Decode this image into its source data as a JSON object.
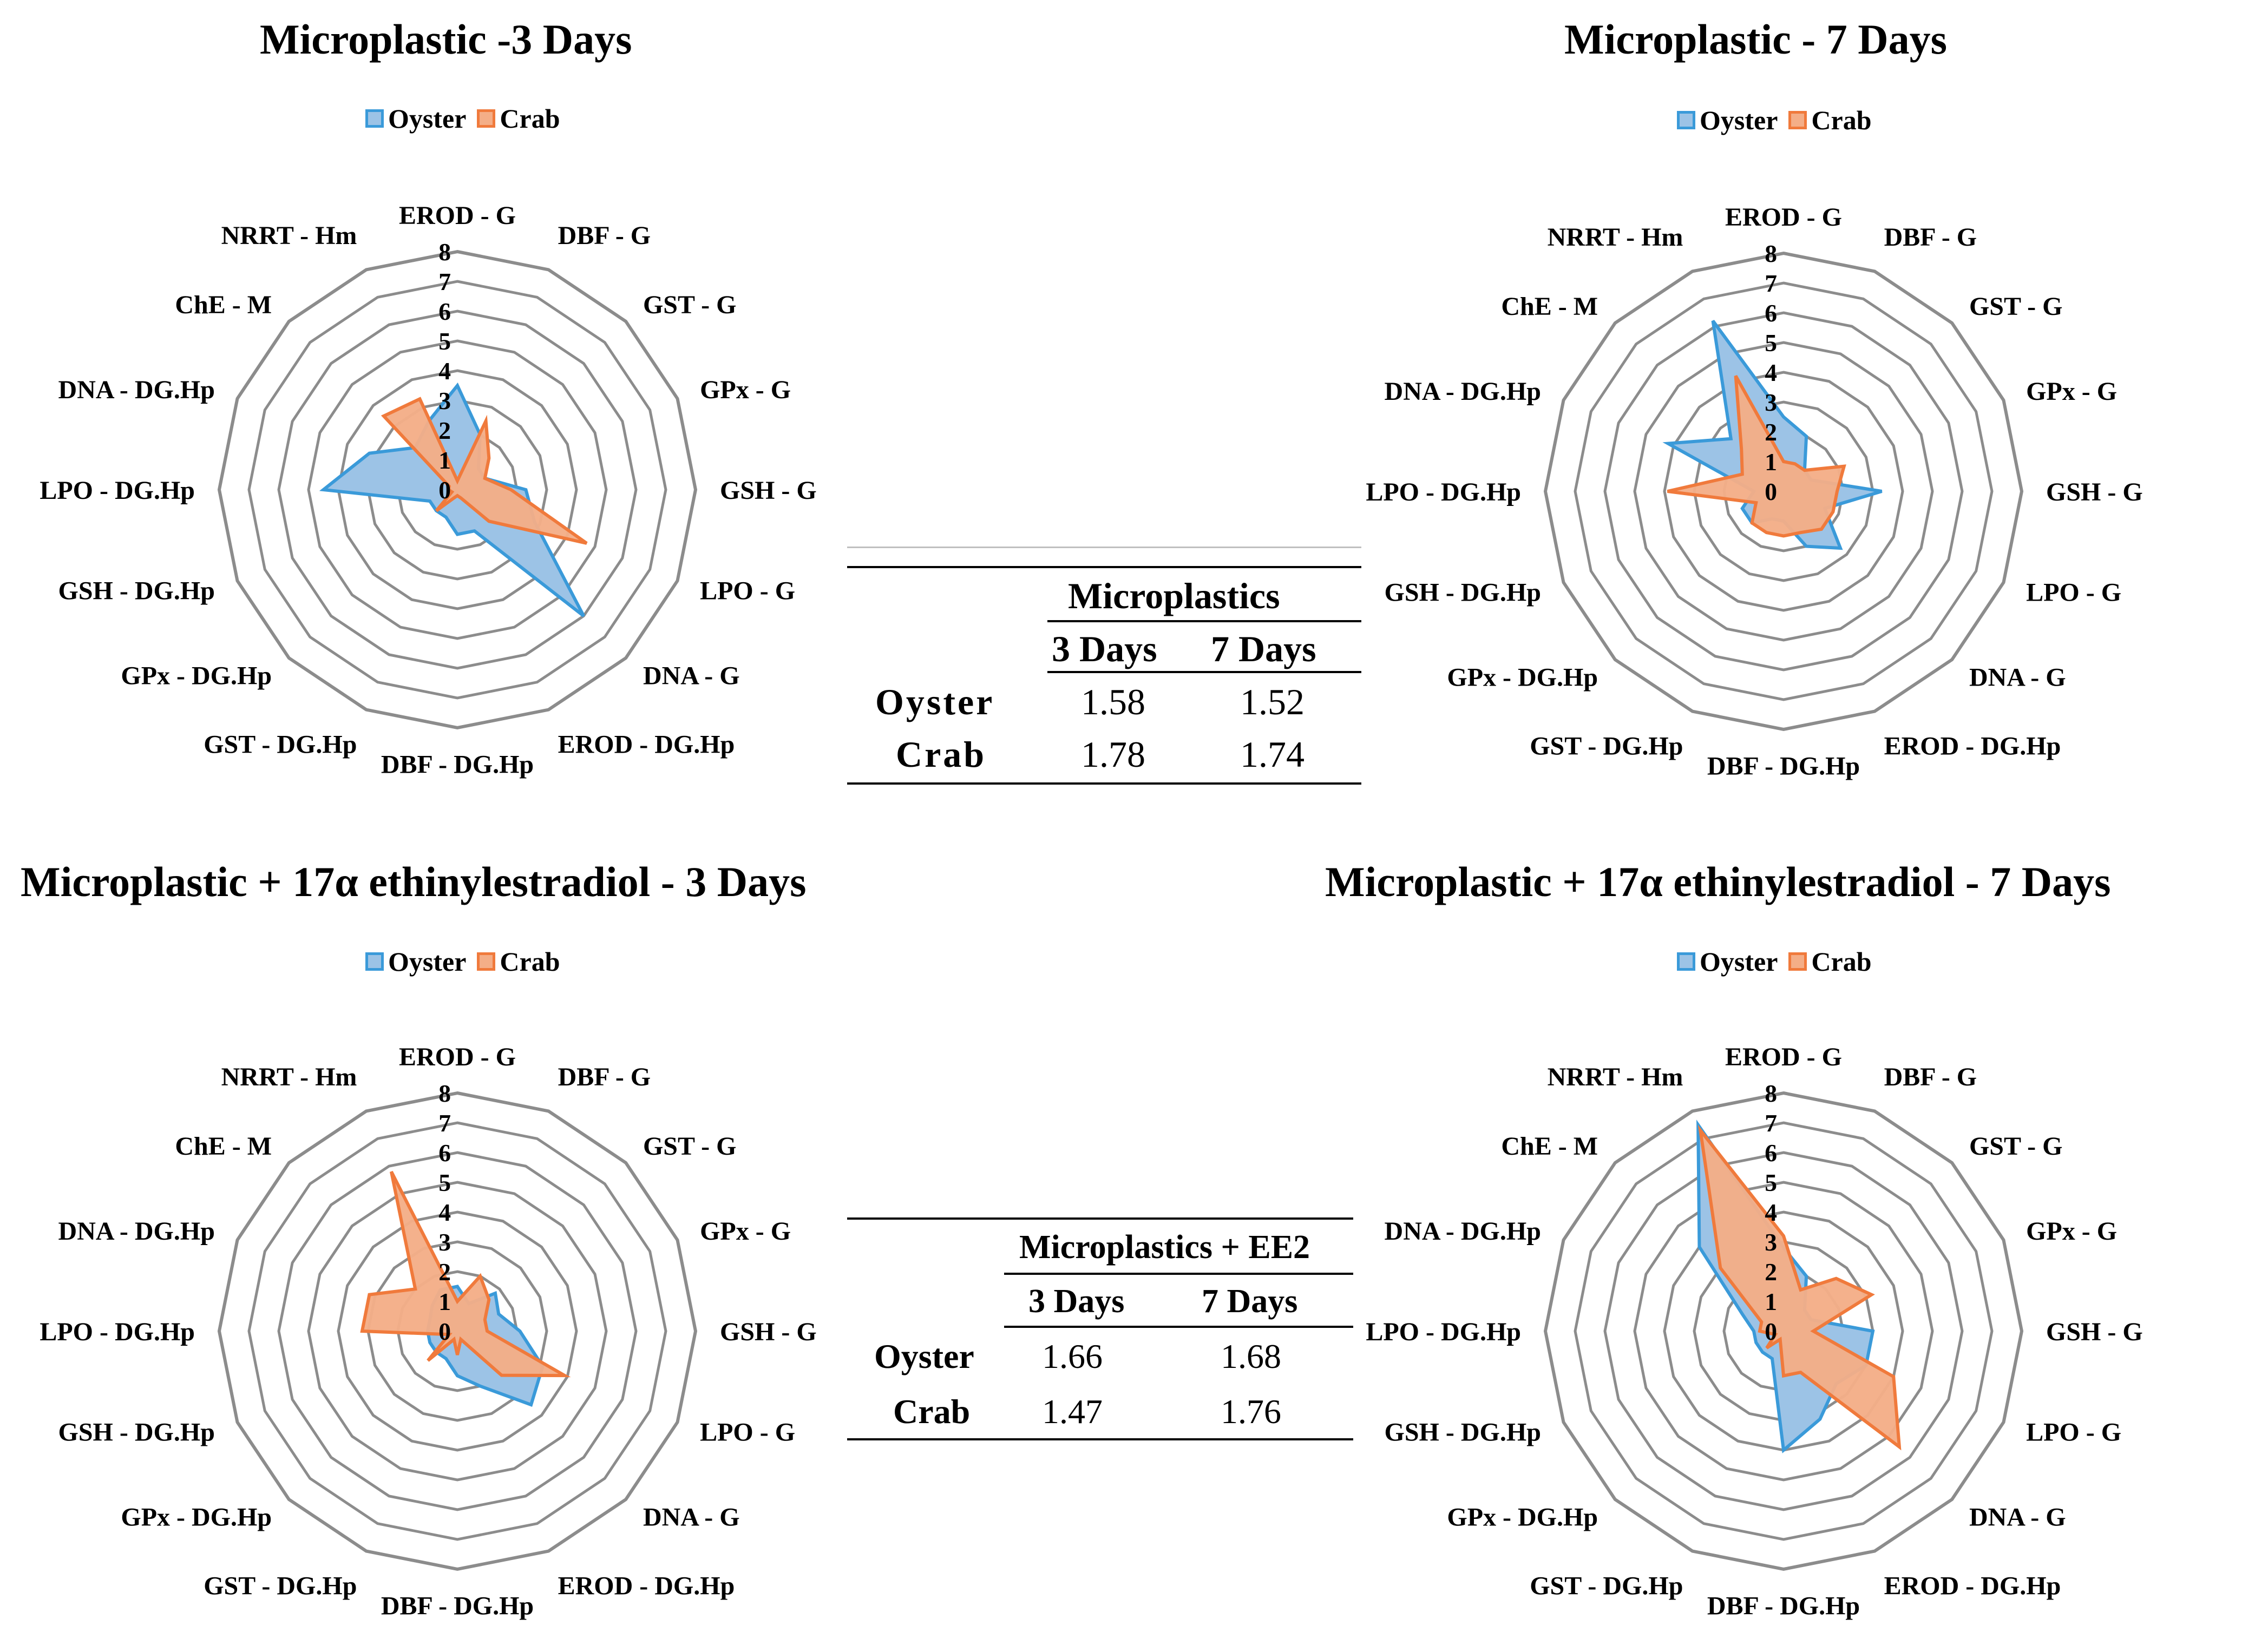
{
  "legend": {
    "oyster": "Oyster",
    "crab": "Crab"
  },
  "colors": {
    "oyster_fill": "#9cc3e6",
    "oyster_stroke": "#3a9ad9",
    "crab_fill": "#f4ae87",
    "crab_stroke": "#f07a3c",
    "grid": "#8c8c8c"
  },
  "chart_data": [
    {
      "type": "radar",
      "title": "Microplastic -3 Days",
      "axes": [
        "EROD - G",
        "DBF - G",
        "GST - G",
        "GPx - G",
        "GSH - G",
        "LPO - G",
        "DNA - G",
        "EROD - DG.Hp",
        "DBF - DG.Hp",
        "GST - DG.Hp",
        "GPx - DG.Hp",
        "GSH - DG.Hp",
        "LPO - DG.Hp",
        "DNA - DG.Hp",
        "ChE - M",
        "NRRT - Hm"
      ],
      "ticks": [
        "0",
        "1",
        "2",
        "3",
        "4",
        "5",
        "6",
        "7",
        "8"
      ],
      "rmax": 8,
      "series": [
        {
          "name": "Oyster",
          "values": [
            3.5,
            2.0,
            1.0,
            1.0,
            2.3,
            2.8,
            6.0,
            1.5,
            1.5,
            1.0,
            1.0,
            1.0,
            4.5,
            3.2,
            2.0,
            2.5
          ]
        },
        {
          "name": "Crab",
          "values": [
            0.3,
            2.5,
            1.5,
            1.0,
            1.8,
            4.7,
            1.5,
            0.3,
            0.2,
            0.3,
            1.0,
            0.2,
            0.3,
            0.3,
            3.5,
            3.3
          ]
        }
      ]
    },
    {
      "type": "radar",
      "title": "Microplastic  - 7 Days",
      "axes": [
        "EROD - G",
        "DBF - G",
        "GST - G",
        "GPx - G",
        "GSH - G",
        "LPO - G",
        "DNA - G",
        "EROD - DG.Hp",
        "DBF - DG.Hp",
        "GST - DG.Hp",
        "GPx - DG.Hp",
        "GSH - DG.Hp",
        "LPO - DG.Hp",
        "DNA - DG.Hp",
        "ChE - M",
        "NRRT - Hm"
      ],
      "ticks": [
        "0",
        "1",
        "2",
        "3",
        "4",
        "5",
        "6",
        "7",
        "8"
      ],
      "rmax": 8,
      "series": [
        {
          "name": "Oyster",
          "values": [
            2.5,
            2.0,
            1.0,
            1.0,
            3.3,
            1.5,
            2.7,
            2.0,
            1.0,
            1.0,
            1.5,
            1.5,
            1.0,
            4.2,
            2.5,
            6.2
          ]
        },
        {
          "name": "Crab",
          "values": [
            1.0,
            1.0,
            1.0,
            2.2,
            1.8,
            1.8,
            1.8,
            1.5,
            1.5,
            1.5,
            1.5,
            1.0,
            3.9,
            1.5,
            2.0,
            4.2
          ]
        }
      ]
    },
    {
      "type": "radar",
      "title": "Microplastic + 17α ethinylestradiol  - 3 Days",
      "axes": [
        "EROD - G",
        "DBF - G",
        "GST - G",
        "GPx - G",
        "GSH - G",
        "LPO - G",
        "DNA - G",
        "EROD - DG.Hp",
        "DBF - DG.Hp",
        "GST - DG.Hp",
        "GPx - DG.Hp",
        "GSH - DG.Hp",
        "LPO - DG.Hp",
        "DNA - DG.Hp",
        "ChE - M",
        "NRRT - Hm"
      ],
      "ticks": [
        "0",
        "1",
        "2",
        "3",
        "4",
        "5",
        "6",
        "7",
        "8"
      ],
      "rmax": 8,
      "series": [
        {
          "name": "Oyster",
          "values": [
            1.5,
            1.0,
            1.8,
            1.5,
            2.1,
            3.1,
            3.5,
            2.0,
            1.5,
            1.0,
            1.0,
            1.0,
            1.0,
            1.0,
            1.2,
            1.5
          ]
        },
        {
          "name": "Crab",
          "values": [
            1.0,
            2.0,
            1.5,
            1.0,
            1.0,
            3.9,
            2.1,
            0.3,
            0.8,
            0.3,
            1.4,
            0.3,
            3.2,
            3.2,
            2.0,
            5.8
          ]
        }
      ]
    },
    {
      "type": "radar",
      "title": "Microplastic + 17α ethinylestradiol  - 7 Days",
      "axes": [
        "EROD - G",
        "DBF - G",
        "GST - G",
        "GPx - G",
        "GSH - G",
        "LPO - G",
        "DNA - G",
        "EROD - DG.Hp",
        "DBF - DG.Hp",
        "GST - DG.Hp",
        "GPx - DG.Hp",
        "GSH - DG.Hp",
        "LPO - DG.Hp",
        "DNA - DG.Hp",
        "ChE - M",
        "NRRT - Hm"
      ],
      "ticks": [
        "0",
        "1",
        "2",
        "3",
        "4",
        "5",
        "6",
        "7",
        "8"
      ],
      "rmax": 8,
      "series": [
        {
          "name": "Oyster",
          "values": [
            2.8,
            2.0,
            1.0,
            1.0,
            3.0,
            3.0,
            2.5,
            3.2,
            4.0,
            1.0,
            1.0,
            1.0,
            1.0,
            1.5,
            4.0,
            7.5
          ]
        },
        {
          "name": "Crab",
          "values": [
            3.2,
            1.5,
            2.5,
            3.2,
            1.0,
            4.0,
            5.5,
            1.5,
            1.5,
            0.3,
            0.8,
            0.3,
            0.8,
            0.8,
            3.0,
            7.3
          ]
        }
      ]
    },
    {
      "type": "table",
      "header": "Microplastics",
      "columns": [
        "3 Days",
        "7 Days"
      ],
      "rows": [
        {
          "label": "Oyster",
          "values": [
            "1.58",
            "1.52"
          ]
        },
        {
          "label": "Crab",
          "values": [
            "1.78",
            "1.74"
          ]
        }
      ]
    },
    {
      "type": "table",
      "header": "Microplastics + EE2",
      "columns": [
        "3 Days",
        "7 Days"
      ],
      "rows": [
        {
          "label": "Oyster",
          "values": [
            "1.66",
            "1.68"
          ]
        },
        {
          "label": "Crab",
          "values": [
            "1.47",
            "1.76"
          ]
        }
      ]
    }
  ]
}
